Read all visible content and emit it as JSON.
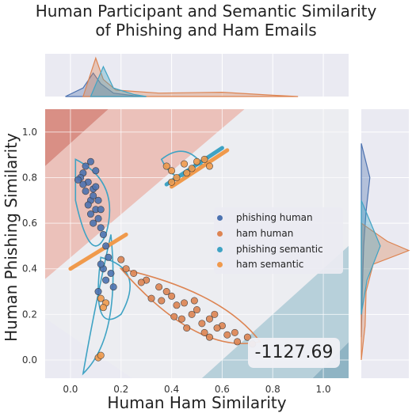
{
  "chart_data": {
    "type": "scatter",
    "title": "Human Participant and Semantic Similarity\nof Phishing and Ham Emails",
    "title_lines": [
      "Human Participant and Semantic Similarity",
      "of Phishing and Ham Emails"
    ],
    "xlabel": "Human Ham Similarity",
    "ylabel": "Human Phishing Similarity",
    "xlim": [
      -0.1,
      1.1
    ],
    "ylim": [
      -0.08,
      1.1
    ],
    "xticks": [
      "0.0",
      "0.2",
      "0.4",
      "0.6",
      "0.8",
      "1.0"
    ],
    "yticks": [
      "0.0",
      "0.2",
      "0.4",
      "0.6",
      "0.8",
      "1.0"
    ],
    "grid": true,
    "legend_position": "center-right",
    "annotation": "-1127.69",
    "colors": {
      "phishing": "#4c72b0",
      "ham": "#dd8452",
      "phishing_semantic": "#3fa3c4",
      "ham_semantic": "#f09a4c",
      "background_warm": "#e8a89a",
      "background_cool": "#8fb8c8"
    },
    "series": [
      {
        "name": "phishing human",
        "color": "#4c72b0",
        "points": [
          [
            0.05,
            0.82
          ],
          [
            0.07,
            0.78
          ],
          [
            0.09,
            0.75
          ],
          [
            0.08,
            0.7
          ],
          [
            0.1,
            0.66
          ],
          [
            0.06,
            0.85
          ],
          [
            0.04,
            0.8
          ],
          [
            0.11,
            0.62
          ],
          [
            0.12,
            0.58
          ],
          [
            0.09,
            0.72
          ],
          [
            0.13,
            0.55
          ],
          [
            0.07,
            0.68
          ],
          [
            0.1,
            0.76
          ],
          [
            0.14,
            0.5
          ],
          [
            0.06,
            0.74
          ],
          [
            0.08,
            0.64
          ],
          [
            0.11,
            0.7
          ],
          [
            0.05,
            0.77
          ],
          [
            0.12,
            0.66
          ],
          [
            0.09,
            0.6
          ],
          [
            0.15,
            0.45
          ],
          [
            0.13,
            0.4
          ],
          [
            0.16,
            0.38
          ],
          [
            0.14,
            0.35
          ],
          [
            0.12,
            0.42
          ],
          [
            0.17,
            0.32
          ],
          [
            0.11,
            0.3
          ],
          [
            0.1,
            0.83
          ],
          [
            0.03,
            0.79
          ],
          [
            0.08,
            0.87
          ]
        ]
      },
      {
        "name": "ham human",
        "color": "#dd8452",
        "points": [
          [
            0.35,
            0.32
          ],
          [
            0.4,
            0.28
          ],
          [
            0.45,
            0.25
          ],
          [
            0.5,
            0.22
          ],
          [
            0.55,
            0.18
          ],
          [
            0.6,
            0.15
          ],
          [
            0.65,
            0.12
          ],
          [
            0.7,
            0.1
          ],
          [
            0.48,
            0.2
          ],
          [
            0.52,
            0.16
          ],
          [
            0.42,
            0.24
          ],
          [
            0.38,
            0.3
          ],
          [
            0.58,
            0.14
          ],
          [
            0.62,
            0.11
          ],
          [
            0.3,
            0.35
          ],
          [
            0.25,
            0.38
          ],
          [
            0.22,
            0.4
          ],
          [
            0.28,
            0.34
          ],
          [
            0.55,
            0.1
          ],
          [
            0.46,
            0.14
          ],
          [
            0.44,
            0.18
          ],
          [
            0.36,
            0.26
          ],
          [
            0.66,
            0.08
          ],
          [
            0.72,
            0.07
          ],
          [
            0.2,
            0.44
          ],
          [
            0.32,
            0.27
          ],
          [
            0.41,
            0.19
          ],
          [
            0.53,
            0.12
          ],
          [
            0.57,
            0.2
          ],
          [
            0.49,
            0.26
          ]
        ]
      },
      {
        "name": "phishing semantic",
        "color": "#3fa3c4",
        "points": []
      },
      {
        "name": "ham semantic",
        "color": "#f09a4c",
        "points": []
      }
    ],
    "cluster_points": [
      [
        0.38,
        0.85
      ],
      [
        0.4,
        0.83
      ],
      [
        0.42,
        0.8
      ],
      [
        0.45,
        0.86
      ],
      [
        0.48,
        0.84
      ],
      [
        0.5,
        0.87
      ],
      [
        0.53,
        0.88
      ],
      [
        0.55,
        0.85
      ],
      [
        0.4,
        0.78
      ],
      [
        0.46,
        0.82
      ],
      [
        0.12,
        0.27
      ],
      [
        0.14,
        0.25
      ],
      [
        0.13,
        0.23
      ],
      [
        0.11,
        0.01
      ],
      [
        0.12,
        0.02
      ]
    ],
    "semantic_lines": [
      {
        "name": "phishing semantic",
        "from": [
          0.38,
          0.77
        ],
        "to": [
          0.6,
          0.93
        ]
      },
      {
        "name": "ham semantic",
        "from": [
          0.4,
          0.76
        ],
        "to": [
          0.62,
          0.92
        ]
      },
      {
        "name": "ham semantic low",
        "from": [
          0.0,
          0.4
        ],
        "to": [
          0.22,
          0.55
        ]
      }
    ]
  }
}
